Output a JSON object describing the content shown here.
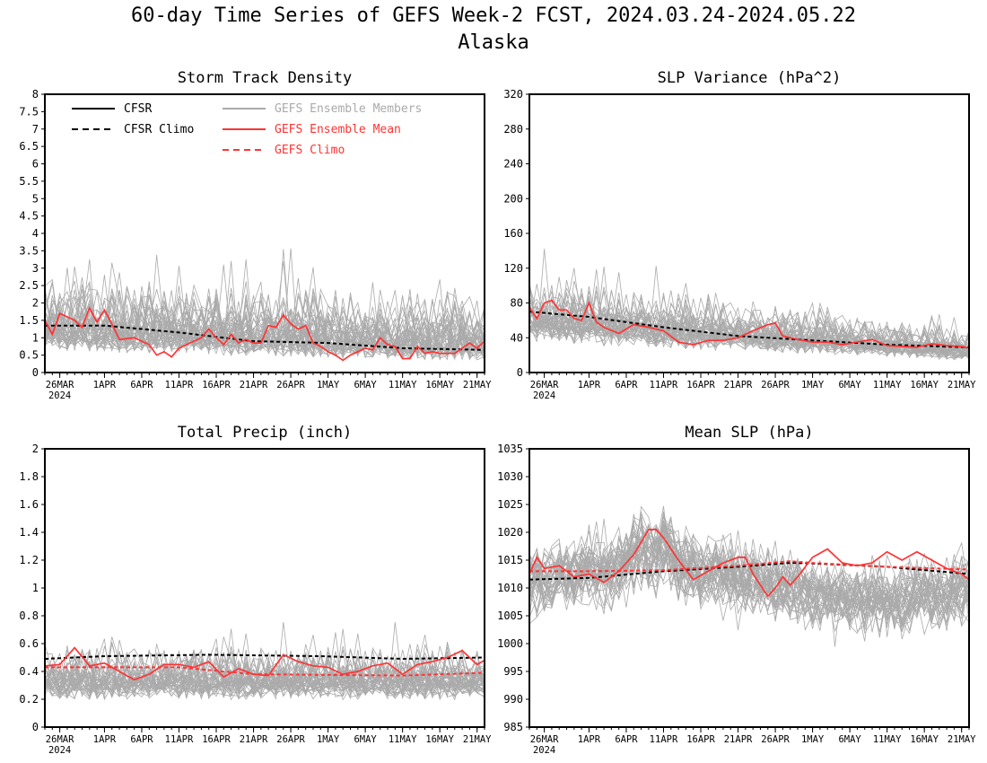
{
  "title": "60-day Time Series of GEFS Week-2 FCST, 2024.03.24-2024.05.22",
  "subtitle": "Alaska",
  "colors": {
    "cfsr": "#000000",
    "members": "#aaaaaa",
    "ensemble_mean": "#ff3333",
    "gefs_climo": "#ff3333"
  },
  "legend": [
    {
      "label": "CFSR",
      "color": "#000000",
      "dash": false
    },
    {
      "label": "CFSR Climo",
      "color": "#000000",
      "dash": true
    },
    {
      "label": "GEFS Ensemble Members",
      "color": "#aaaaaa",
      "dash": false
    },
    {
      "label": "GEFS Ensemble Mean",
      "color": "#ff3333",
      "dash": false
    },
    {
      "label": "GEFS Climo",
      "color": "#ff3333",
      "dash": true
    }
  ],
  "chart_data": [
    {
      "type": "line",
      "title": "Storm Track Density",
      "ylim": [
        0,
        8
      ],
      "yticks": [
        "0",
        "0.5",
        "1",
        "1.5",
        "2",
        "2.5",
        "3",
        "3.5",
        "4",
        "4.5",
        "5",
        "5.5",
        "6",
        "6.5",
        "7",
        "7.5",
        "8"
      ],
      "xlim": [
        "2024-03-24",
        "2024-05-22"
      ],
      "xticks": [
        "26MAR",
        "1APR",
        "6APR",
        "11APR",
        "16APR",
        "21APR",
        "26APR",
        "1MAY",
        "6MAY",
        "11MAY",
        "16MAY",
        "21MAY"
      ],
      "xtick_year": "2024",
      "series": [
        {
          "name": "CFSR Climo",
          "x": [
            "2024-03-24",
            "2024-04-01",
            "2024-04-11",
            "2024-04-21",
            "2024-05-01",
            "2024-05-11",
            "2024-05-22"
          ],
          "values": [
            1.35,
            1.35,
            1.15,
            0.9,
            0.85,
            0.7,
            0.65
          ]
        },
        {
          "name": "GEFS Ensemble Mean",
          "x": [
            "2024-03-24",
            "2024-03-25",
            "2024-03-26",
            "2024-03-28",
            "2024-03-29",
            "2024-03-30",
            "2024-03-31",
            "2024-04-01",
            "2024-04-02",
            "2024-04-03",
            "2024-04-05",
            "2024-04-07",
            "2024-04-08",
            "2024-04-09",
            "2024-04-10",
            "2024-04-11",
            "2024-04-13",
            "2024-04-14",
            "2024-04-15",
            "2024-04-16",
            "2024-04-17",
            "2024-04-18",
            "2024-04-19",
            "2024-04-20",
            "2024-04-21",
            "2024-04-22",
            "2024-04-23",
            "2024-04-24",
            "2024-04-25",
            "2024-04-26",
            "2024-04-27",
            "2024-04-28",
            "2024-04-29",
            "2024-04-30",
            "2024-05-01",
            "2024-05-02",
            "2024-05-03",
            "2024-05-04",
            "2024-05-05",
            "2024-05-06",
            "2024-05-07",
            "2024-05-08",
            "2024-05-09",
            "2024-05-10",
            "2024-05-11",
            "2024-05-12",
            "2024-05-13",
            "2024-05-14",
            "2024-05-15",
            "2024-05-16",
            "2024-05-17",
            "2024-05-18",
            "2024-05-19",
            "2024-05-20",
            "2024-05-21",
            "2024-05-22"
          ],
          "values": [
            1.5,
            1.1,
            1.7,
            1.5,
            1.3,
            1.85,
            1.45,
            1.8,
            1.4,
            0.95,
            1.0,
            0.8,
            0.5,
            0.6,
            0.45,
            0.7,
            0.9,
            1.0,
            1.25,
            1.0,
            0.8,
            1.1,
            0.85,
            0.95,
            0.85,
            0.85,
            1.35,
            1.3,
            1.65,
            1.4,
            1.25,
            1.35,
            0.85,
            0.75,
            0.6,
            0.5,
            0.35,
            0.5,
            0.6,
            0.7,
            0.65,
            1.0,
            0.8,
            0.75,
            0.4,
            0.4,
            0.75,
            0.55,
            0.6,
            0.55,
            0.55,
            0.55,
            0.7,
            0.85,
            0.7,
            0.9
          ]
        }
      ]
    },
    {
      "type": "line",
      "title": "SLP Variance (hPa^2)",
      "ylim": [
        0,
        320
      ],
      "yticks": [
        "0",
        "40",
        "80",
        "120",
        "160",
        "200",
        "240",
        "280",
        "320"
      ],
      "xlim": [
        "2024-03-24",
        "2024-05-22"
      ],
      "xticks": [
        "26MAR",
        "1APR",
        "6APR",
        "11APR",
        "16APR",
        "21APR",
        "26APR",
        "1MAY",
        "6MAY",
        "11MAY",
        "16MAY",
        "21MAY"
      ],
      "xtick_year": "2024",
      "series": [
        {
          "name": "CFSR Climo",
          "x": [
            "2024-03-24",
            "2024-04-01",
            "2024-04-11",
            "2024-04-21",
            "2024-05-01",
            "2024-05-11",
            "2024-05-22"
          ],
          "values": [
            70,
            64,
            52,
            42,
            37,
            32,
            29
          ]
        },
        {
          "name": "GEFS Ensemble Mean",
          "x": [
            "2024-03-24",
            "2024-03-25",
            "2024-03-26",
            "2024-03-27",
            "2024-03-28",
            "2024-03-29",
            "2024-03-30",
            "2024-03-31",
            "2024-04-01",
            "2024-04-02",
            "2024-04-03",
            "2024-04-05",
            "2024-04-07",
            "2024-04-09",
            "2024-04-11",
            "2024-04-13",
            "2024-04-15",
            "2024-04-17",
            "2024-04-19",
            "2024-04-21",
            "2024-04-23",
            "2024-04-25",
            "2024-04-26",
            "2024-04-27",
            "2024-04-29",
            "2024-05-01",
            "2024-05-03",
            "2024-05-05",
            "2024-05-07",
            "2024-05-09",
            "2024-05-11",
            "2024-05-13",
            "2024-05-15",
            "2024-05-17",
            "2024-05-19",
            "2024-05-21",
            "2024-05-22"
          ],
          "values": [
            75,
            62,
            80,
            83,
            72,
            72,
            62,
            60,
            80,
            58,
            52,
            45,
            55,
            52,
            48,
            35,
            32,
            37,
            37,
            40,
            48,
            55,
            57,
            42,
            38,
            35,
            35,
            32,
            35,
            38,
            31,
            30,
            29,
            33,
            31,
            30,
            28
          ]
        }
      ]
    },
    {
      "type": "line",
      "title": "Total Precip (inch)",
      "ylim": [
        0,
        2
      ],
      "yticks": [
        "0",
        "0.2",
        "0.4",
        "0.6",
        "0.8",
        "1",
        "1.2",
        "1.4",
        "1.6",
        "1.8",
        "2"
      ],
      "xlim": [
        "2024-03-24",
        "2024-05-22"
      ],
      "xticks": [
        "26MAR",
        "1APR",
        "6APR",
        "11APR",
        "16APR",
        "21APR",
        "26APR",
        "1MAY",
        "6MAY",
        "11MAY",
        "16MAY",
        "21MAY"
      ],
      "xtick_year": "2024",
      "series": [
        {
          "name": "CFSR Climo",
          "x": [
            "2024-03-24",
            "2024-04-01",
            "2024-04-15",
            "2024-04-30",
            "2024-05-11",
            "2024-05-22"
          ],
          "values": [
            0.49,
            0.51,
            0.52,
            0.51,
            0.49,
            0.5
          ]
        },
        {
          "name": "GEFS Climo",
          "x": [
            "2024-03-24",
            "2024-04-11",
            "2024-04-21",
            "2024-05-11",
            "2024-05-22"
          ],
          "values": [
            0.43,
            0.43,
            0.38,
            0.37,
            0.39
          ]
        },
        {
          "name": "GEFS Ensemble Mean",
          "x": [
            "2024-03-24",
            "2024-03-26",
            "2024-03-28",
            "2024-03-30",
            "2024-04-01",
            "2024-04-03",
            "2024-04-05",
            "2024-04-07",
            "2024-04-09",
            "2024-04-11",
            "2024-04-13",
            "2024-04-15",
            "2024-04-17",
            "2024-04-19",
            "2024-04-21",
            "2024-04-23",
            "2024-04-25",
            "2024-04-27",
            "2024-04-29",
            "2024-05-01",
            "2024-05-03",
            "2024-05-05",
            "2024-05-07",
            "2024-05-09",
            "2024-05-11",
            "2024-05-13",
            "2024-05-15",
            "2024-05-17",
            "2024-05-19",
            "2024-05-21",
            "2024-05-22"
          ],
          "values": [
            0.44,
            0.45,
            0.57,
            0.44,
            0.46,
            0.4,
            0.34,
            0.38,
            0.45,
            0.45,
            0.43,
            0.47,
            0.36,
            0.42,
            0.38,
            0.37,
            0.52,
            0.47,
            0.44,
            0.43,
            0.38,
            0.4,
            0.44,
            0.46,
            0.38,
            0.45,
            0.47,
            0.5,
            0.55,
            0.45,
            0.48
          ]
        }
      ]
    },
    {
      "type": "line",
      "title": "Mean SLP (hPa)",
      "ylim": [
        985,
        1035
      ],
      "yticks": [
        "985",
        "990",
        "995",
        "1000",
        "1005",
        "1010",
        "1015",
        "1020",
        "1025",
        "1030",
        "1035"
      ],
      "xlim": [
        "2024-03-24",
        "2024-05-22"
      ],
      "xticks": [
        "26MAR",
        "1APR",
        "6APR",
        "11APR",
        "16APR",
        "21APR",
        "26APR",
        "1MAY",
        "6MAY",
        "11MAY",
        "16MAY",
        "21MAY"
      ],
      "xtick_year": "2024",
      "series": [
        {
          "name": "CFSR Climo",
          "x": [
            "2024-03-24",
            "2024-04-01",
            "2024-04-11",
            "2024-04-21",
            "2024-04-28",
            "2024-05-01",
            "2024-05-11",
            "2024-05-22"
          ],
          "values": [
            1011.5,
            1011.8,
            1013.0,
            1013.8,
            1014.5,
            1014.4,
            1013.8,
            1012.5
          ]
        },
        {
          "name": "GEFS Climo",
          "x": [
            "2024-03-24",
            "2024-04-01",
            "2024-04-11",
            "2024-04-21",
            "2024-04-28",
            "2024-05-01",
            "2024-05-11",
            "2024-05-22"
          ],
          "values": [
            1013.0,
            1013.0,
            1013.2,
            1014.0,
            1014.8,
            1014.5,
            1013.8,
            1013.3
          ]
        },
        {
          "name": "GEFS Ensemble Mean",
          "x": [
            "2024-03-24",
            "2024-03-25",
            "2024-03-26",
            "2024-03-28",
            "2024-03-30",
            "2024-04-01",
            "2024-04-03",
            "2024-04-05",
            "2024-04-07",
            "2024-04-09",
            "2024-04-10",
            "2024-04-11",
            "2024-04-13",
            "2024-04-15",
            "2024-04-17",
            "2024-04-19",
            "2024-04-21",
            "2024-04-22",
            "2024-04-23",
            "2024-04-25",
            "2024-04-26",
            "2024-04-27",
            "2024-04-28",
            "2024-04-29",
            "2024-05-01",
            "2024-05-03",
            "2024-05-05",
            "2024-05-07",
            "2024-05-09",
            "2024-05-11",
            "2024-05-13",
            "2024-05-15",
            "2024-05-17",
            "2024-05-19",
            "2024-05-21",
            "2024-05-22"
          ],
          "values": [
            1012.5,
            1015.5,
            1013.5,
            1014.0,
            1012.0,
            1012.5,
            1011.0,
            1013.0,
            1016.0,
            1020.5,
            1020.5,
            1019.0,
            1015.0,
            1011.5,
            1013.0,
            1014.5,
            1015.5,
            1015.5,
            1012.5,
            1008.5,
            1010.0,
            1012.0,
            1010.5,
            1012.0,
            1015.5,
            1017.0,
            1014.5,
            1014.0,
            1014.5,
            1016.5,
            1015.0,
            1016.5,
            1015.0,
            1013.5,
            1012.5,
            1011.5
          ]
        }
      ]
    }
  ]
}
